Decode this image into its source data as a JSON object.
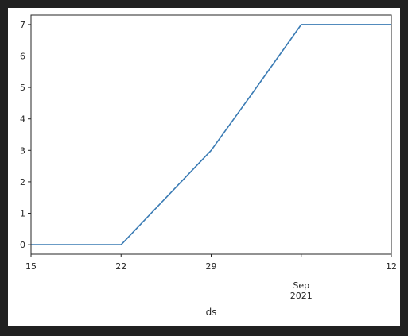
{
  "chart_data": {
    "type": "line",
    "title": "",
    "xlabel": "ds",
    "ylabel": "",
    "x": [
      "2021-08-15",
      "2021-08-22",
      "2021-08-29",
      "2021-09-01",
      "2021-09-05",
      "2021-09-12"
    ],
    "series": [
      {
        "values": [
          0,
          0,
          3,
          4.7,
          7,
          7
        ],
        "color": "#3a7bb4"
      }
    ],
    "xlim": [
      "2021-08-15",
      "2021-09-12"
    ],
    "ylim": [
      -0.3,
      7.3
    ],
    "yticks": [
      0,
      1,
      2,
      3,
      4,
      5,
      6,
      7
    ],
    "xticks": [
      {
        "date": "2021-08-15",
        "label": "15"
      },
      {
        "date": "2021-08-22",
        "label": "22"
      },
      {
        "date": "2021-08-29",
        "label": "29"
      },
      {
        "date": "2021-09-05",
        "label": "Sep\n2021"
      },
      {
        "date": "2021-09-12",
        "label": "12"
      }
    ],
    "grid": false,
    "legend": "none"
  },
  "colors": {
    "line": "#3a7bb4",
    "axes": "#262626",
    "background": "#ffffff",
    "outer": "#212121"
  }
}
